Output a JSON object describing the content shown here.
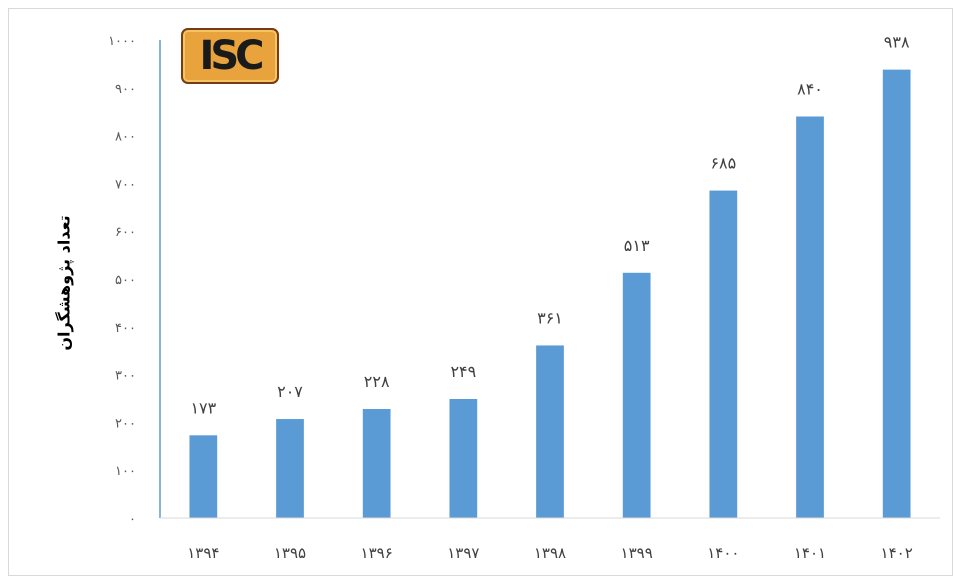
{
  "logo_text": "ISC",
  "chart_data": {
    "type": "bar",
    "categories": [
      "۱۳۹۴",
      "۱۳۹۵",
      "۱۳۹۶",
      "۱۳۹۷",
      "۱۳۹۸",
      "۱۳۹۹",
      "۱۴۰۰",
      "۱۴۰۱",
      "۱۴۰۲"
    ],
    "values": [
      173,
      207,
      228,
      249,
      361,
      513,
      685,
      840,
      938
    ],
    "value_labels": [
      "۱۷۳",
      "۲۰۷",
      "۲۲۸",
      "۲۴۹",
      "۳۶۱",
      "۵۱۳",
      "۶۸۵",
      "۸۴۰",
      "۹۳۸"
    ],
    "ylabel": "تعداد پژوهشگران",
    "ylim": [
      0,
      1000
    ],
    "yticks": [
      0,
      100,
      200,
      300,
      400,
      500,
      600,
      700,
      800,
      900,
      1000
    ],
    "ytick_labels": [
      "۰",
      "۱۰۰",
      "۲۰۰",
      "۳۰۰",
      "۴۰۰",
      "۵۰۰",
      "۶۰۰",
      "۷۰۰",
      "۸۰۰",
      "۹۰۰",
      "۱۰۰۰"
    ],
    "grid": false,
    "legend": "none",
    "bar_color": "#5b9bd5"
  }
}
